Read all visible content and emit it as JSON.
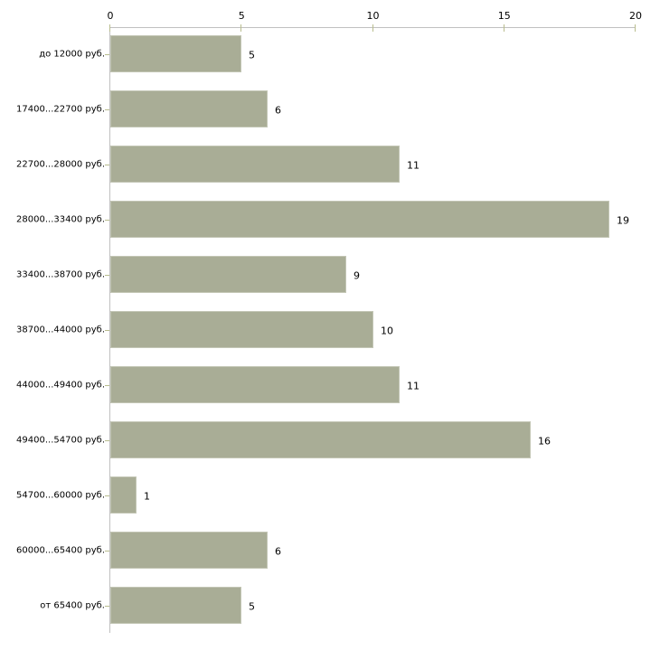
{
  "chart_data": {
    "type": "bar",
    "orientation": "horizontal",
    "title": "",
    "xlabel": "",
    "ylabel": "",
    "categories": [
      "до 12000 руб.",
      "17400...22700 руб.",
      "22700...28000 руб.",
      "28000...33400 руб.",
      "33400...38700 руб.",
      "38700...44000 руб.",
      "44000...49400 руб.",
      "49400...54700 руб.",
      "54700...60000 руб.",
      "60000...65400 руб.",
      "от 65400 руб."
    ],
    "values": [
      5,
      6,
      11,
      19,
      9,
      10,
      11,
      16,
      1,
      6,
      5
    ],
    "value_labels": [
      "5",
      "6",
      "11",
      "19",
      "9",
      "10",
      "11",
      "16",
      "1",
      "6",
      "5"
    ],
    "x_ticks": [
      0,
      5,
      10,
      15,
      20
    ],
    "x_tick_labels": [
      "0",
      "5",
      "10",
      "15",
      "20"
    ],
    "xlim": [
      0,
      20
    ],
    "grid": false,
    "legend": false,
    "colors": {
      "bar_fill": "#a9ad96",
      "bar_border": "#c3c6b5",
      "axis_line": "#c0c0c0",
      "tick_mark": "#b9bd8e",
      "text": "#000000",
      "background": "#ffffff"
    }
  }
}
